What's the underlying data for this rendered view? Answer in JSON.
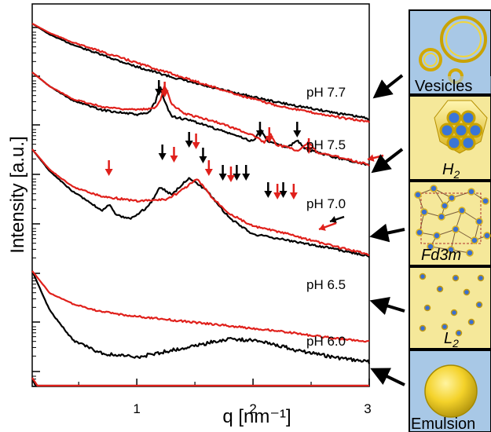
{
  "chart_data": {
    "type": "line",
    "xlabel": "q [nm⁻¹]",
    "ylabel": "Intensity [a.u.]",
    "xlim": [
      0.1,
      3.0
    ],
    "xticks": [
      "1",
      "2",
      "3"
    ],
    "yscale": "log",
    "colors": {
      "black": "#000000",
      "red": "#e0201b"
    },
    "curves": [
      {
        "label": "pH 7.7",
        "color": "black",
        "points": [
          [
            0.1,
            0
          ],
          [
            0.25,
            14
          ],
          [
            0.45,
            27
          ],
          [
            0.7,
            40
          ],
          [
            1.0,
            55
          ],
          [
            1.3,
            68
          ],
          [
            1.6,
            80
          ],
          [
            1.9,
            90
          ],
          [
            2.2,
            100
          ],
          [
            2.5,
            108
          ],
          [
            2.8,
            116
          ],
          [
            3.0,
            121
          ]
        ]
      },
      {
        "label": "pH 7.7",
        "color": "red",
        "points": [
          [
            0.1,
            0
          ],
          [
            0.25,
            12
          ],
          [
            0.45,
            24
          ],
          [
            0.7,
            36
          ],
          [
            1.0,
            50
          ],
          [
            1.3,
            64
          ],
          [
            1.6,
            78
          ],
          [
            1.9,
            92
          ],
          [
            2.2,
            104
          ],
          [
            2.5,
            113
          ],
          [
            2.8,
            121
          ],
          [
            3.0,
            125
          ]
        ]
      },
      {
        "label": "pH 7.5",
        "color": "black",
        "points": [
          [
            0.1,
            32
          ],
          [
            0.25,
            50
          ],
          [
            0.45,
            68
          ],
          [
            0.7,
            80
          ],
          [
            1.0,
            86
          ],
          [
            1.1,
            84
          ],
          [
            1.16,
            70
          ],
          [
            1.2,
            50
          ],
          [
            1.24,
            70
          ],
          [
            1.3,
            88
          ],
          [
            1.5,
            95
          ],
          [
            1.8,
            110
          ],
          [
            2.0,
            120
          ],
          [
            2.07,
            105
          ],
          [
            2.13,
            120
          ],
          [
            2.3,
            128
          ],
          [
            2.38,
            118
          ],
          [
            2.45,
            130
          ],
          [
            2.7,
            140
          ],
          [
            3.0,
            150
          ]
        ]
      },
      {
        "label": "pH 7.5",
        "color": "red",
        "points": [
          [
            0.1,
            32
          ],
          [
            0.25,
            50
          ],
          [
            0.45,
            66
          ],
          [
            0.7,
            76
          ],
          [
            1.0,
            80
          ],
          [
            1.15,
            78
          ],
          [
            1.2,
            68
          ],
          [
            1.24,
            48
          ],
          [
            1.3,
            72
          ],
          [
            1.4,
            84
          ],
          [
            1.7,
            96
          ],
          [
            2.0,
            112
          ],
          [
            2.1,
            122
          ],
          [
            2.15,
            110
          ],
          [
            2.2,
            124
          ],
          [
            2.4,
            132
          ],
          [
            2.48,
            120
          ],
          [
            2.55,
            134
          ],
          [
            2.8,
            142
          ],
          [
            3.0,
            150
          ]
        ]
      },
      {
        "label": "pH 7.0",
        "color": "black",
        "points": [
          [
            0.1,
            62
          ],
          [
            0.25,
            90
          ],
          [
            0.45,
            116
          ],
          [
            0.6,
            130
          ],
          [
            0.7,
            140
          ],
          [
            0.76,
            132
          ],
          [
            0.82,
            146
          ],
          [
            0.95,
            150
          ],
          [
            1.1,
            135
          ],
          [
            1.2,
            110
          ],
          [
            1.3,
            120
          ],
          [
            1.45,
            98
          ],
          [
            1.6,
            115
          ],
          [
            1.8,
            150
          ],
          [
            2.0,
            170
          ],
          [
            2.3,
            178
          ],
          [
            2.6,
            186
          ],
          [
            3.0,
            198
          ]
        ]
      },
      {
        "label": "pH 7.0",
        "color": "red",
        "points": [
          [
            0.1,
            62
          ],
          [
            0.25,
            88
          ],
          [
            0.45,
            110
          ],
          [
            0.7,
            122
          ],
          [
            1.0,
            128
          ],
          [
            1.25,
            126
          ],
          [
            1.35,
            118
          ],
          [
            1.52,
            100
          ],
          [
            1.65,
            124
          ],
          [
            1.8,
            144
          ],
          [
            2.0,
            160
          ],
          [
            2.3,
            170
          ],
          [
            2.6,
            182
          ],
          [
            3.0,
            196
          ]
        ]
      },
      {
        "label": "pH 6.5",
        "color": "black",
        "points": [
          [
            0.1,
            120
          ],
          [
            0.25,
            170
          ],
          [
            0.45,
            208
          ],
          [
            0.7,
            225
          ],
          [
            1.0,
            230
          ],
          [
            1.4,
            218
          ],
          [
            1.8,
            206
          ],
          [
            2.1,
            210
          ],
          [
            2.4,
            222
          ],
          [
            2.7,
            230
          ],
          [
            3.0,
            236
          ]
        ]
      },
      {
        "label": "pH 6.5",
        "color": "red",
        "points": [
          [
            0.1,
            120
          ],
          [
            0.25,
            148
          ],
          [
            0.45,
            162
          ],
          [
            0.7,
            172
          ],
          [
            1.0,
            178
          ],
          [
            1.4,
            184
          ],
          [
            1.8,
            190
          ],
          [
            2.2,
            196
          ],
          [
            2.6,
            204
          ],
          [
            3.0,
            210
          ]
        ]
      },
      {
        "label": "pH 6.0",
        "color": "black",
        "points": [
          [
            0.1,
            176
          ],
          [
            0.25,
            232
          ],
          [
            0.45,
            276
          ],
          [
            0.7,
            296
          ],
          [
            1.0,
            304
          ],
          [
            1.4,
            302
          ],
          [
            1.8,
            298
          ],
          [
            2.2,
            296
          ],
          [
            2.6,
            298
          ],
          [
            3.0,
            300
          ]
        ]
      },
      {
        "label": "pH 6.0",
        "color": "red",
        "points": [
          [
            0.1,
            176
          ],
          [
            0.25,
            210
          ],
          [
            0.45,
            236
          ],
          [
            0.7,
            248
          ],
          [
            1.0,
            256
          ],
          [
            1.4,
            264
          ],
          [
            1.8,
            272
          ],
          [
            2.2,
            280
          ],
          [
            2.6,
            286
          ],
          [
            3.0,
            290
          ]
        ]
      }
    ],
    "series": [
      {
        "name": "pH 7.7",
        "phase": "Vesicles"
      },
      {
        "name": "pH 7.5",
        "phase": "H2"
      },
      {
        "name": "pH 7.0",
        "phase": "Fd3m"
      },
      {
        "name": "pH 6.5",
        "phase": "L2"
      },
      {
        "name": "pH 6.0",
        "phase": "Emulsion"
      }
    ],
    "peak_arrows": [
      {
        "series": "pH 7.5",
        "color": "black",
        "q": [
          1.19,
          2.06,
          2.38
        ]
      },
      {
        "series": "pH 7.5",
        "color": "red",
        "q": [
          1.24,
          2.14,
          2.48
        ]
      },
      {
        "series": "pH 7.0",
        "color": "black",
        "q": [
          1.22,
          1.45,
          1.57,
          1.74,
          1.86,
          1.94,
          2.13,
          2.26
        ]
      },
      {
        "series": "pH 7.0",
        "color": "red",
        "q": [
          0.76,
          1.32,
          1.51,
          1.62,
          1.81,
          2.21,
          2.35
        ]
      }
    ]
  },
  "phases": {
    "vesicles": {
      "title_main": "Vesicles",
      "icon": "vesicles-icon"
    },
    "h2": {
      "title_main": "H",
      "title_sub": "2",
      "icon": "hexagonal-icon"
    },
    "fd3m": {
      "title_main": "Fd3m",
      "icon": "cubic-icon"
    },
    "l2": {
      "title_main": "L",
      "title_sub": "2",
      "icon": "micelles-icon"
    },
    "emulsion": {
      "title_main": "Emulsion",
      "icon": "droplet-icon"
    }
  }
}
